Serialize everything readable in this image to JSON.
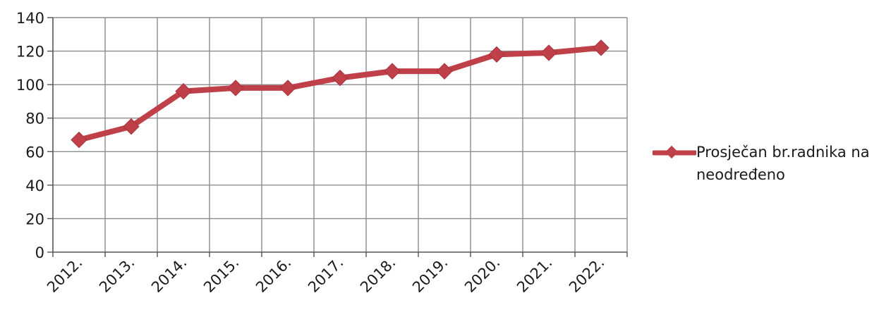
{
  "chart_data": {
    "type": "line",
    "categories": [
      "2012.",
      "2013.",
      "2014.",
      "2015.",
      "2016.",
      "2017.",
      "2018.",
      "2019.",
      "2020.",
      "2021.",
      "2022."
    ],
    "series": [
      {
        "name": "Prosječan br.radnika na neodređeno",
        "values": [
          67,
          75,
          96,
          98,
          98,
          104,
          108,
          108,
          118,
          119,
          122
        ],
        "color": "#c0404a"
      }
    ],
    "yticks": [
      "0",
      "20",
      "40",
      "60",
      "80",
      "100",
      "120",
      "140"
    ],
    "ylim": [
      0,
      140
    ],
    "grid": true,
    "legend_position": "right"
  },
  "legend": {
    "label": "Prosječan br.radnika na neodređeno"
  },
  "colors": {
    "series": "#c0404a",
    "grid": "#8c8c8c",
    "axis": "#555555"
  }
}
